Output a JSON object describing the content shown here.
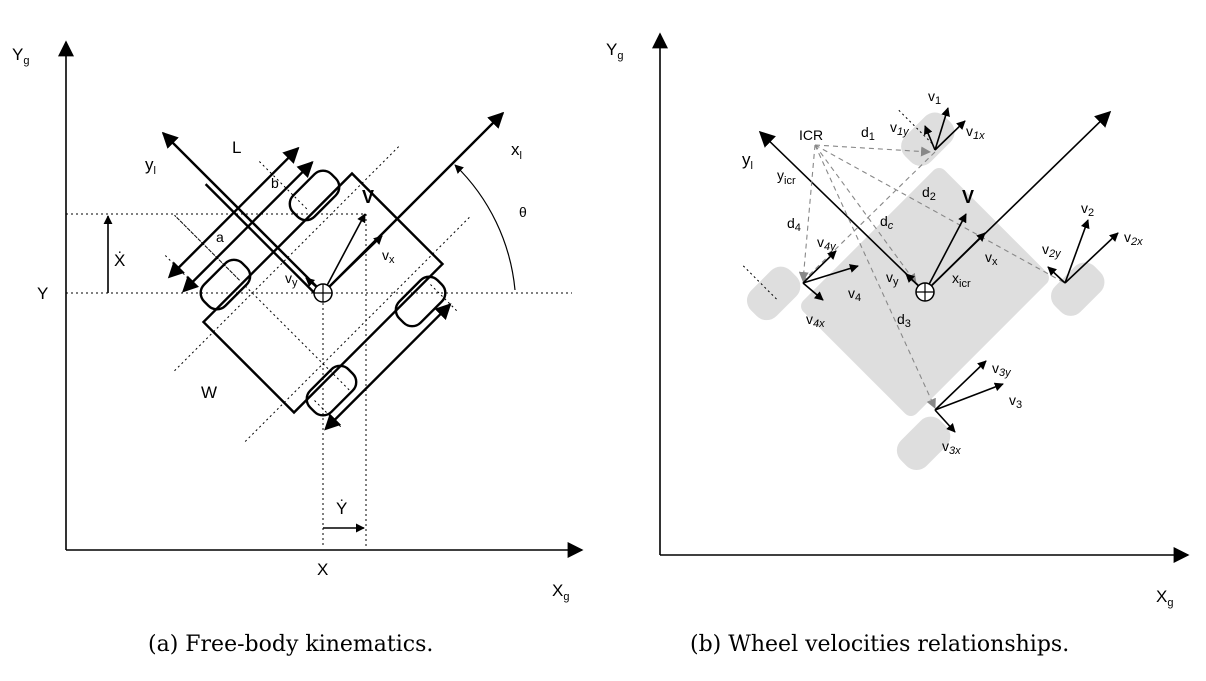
{
  "panel_a": {
    "axis_y": "Y",
    "axis_y_sub": "g",
    "axis_x": "X",
    "axis_x_sub": "g",
    "tick_Y": "Y",
    "tick_X": "X",
    "x_dot": "Ẋ",
    "y_dot": "Ẏ",
    "local_x": "x",
    "local_x_sub": "l",
    "local_y": "y",
    "local_y_sub": "l",
    "L": "L",
    "b": "b",
    "a": "a",
    "W": "W",
    "V": "V",
    "vx": "v",
    "vx_sub": "x",
    "vy": "v",
    "vy_sub": "y",
    "theta": "θ",
    "caption": "(a) Free-body kinematics."
  },
  "panel_b": {
    "axis_y": "Y",
    "axis_y_sub": "g",
    "axis_x": "X",
    "axis_x_sub": "g",
    "ICR": "ICR",
    "y_l": "y",
    "y_l_sub": "l",
    "y_icr": "y",
    "y_icr_sub": "icr",
    "x_icr": "x",
    "x_icr_sub": "icr",
    "d1": "d",
    "d1_sub": "1",
    "d2": "d",
    "d2_sub": "2",
    "d3": "d",
    "d3_sub": "3",
    "d4": "d",
    "d4_sub": "4",
    "dc": "d",
    "dc_sub": "c",
    "V": "V",
    "vx": "v",
    "vx_sub": "x",
    "vy": "v",
    "vy_sub": "y",
    "v1": "v",
    "v1_sub": "1",
    "v1x": "v",
    "v1x_sub": "1x",
    "v1y": "v",
    "v1y_sub": "1y",
    "v2": "v",
    "v2_sub": "2",
    "v2x": "v",
    "v2x_sub": "2x",
    "v2y": "v",
    "v2y_sub": "2y",
    "v3": "v",
    "v3_sub": "3",
    "v3x": "v",
    "v3x_sub": "3x",
    "v3y": "v",
    "v3y_sub": "3y",
    "v4": "v",
    "v4_sub": "4",
    "v4x": "v",
    "v4x_sub": "4x",
    "v4y": "v",
    "v4y_sub": "4y",
    "caption": "(b) Wheel velocities relationships."
  }
}
